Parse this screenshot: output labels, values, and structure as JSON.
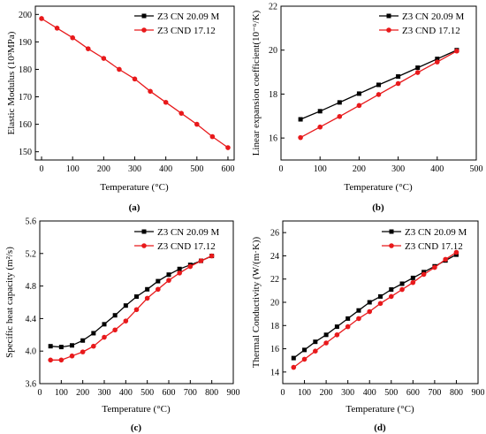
{
  "chart_data": [
    {
      "panel": "(a)",
      "type": "line",
      "xlabel": "Temperature (°C)",
      "ylabel": "Elastic Modulus (10³MPa)",
      "xlim": [
        -20,
        620
      ],
      "ylim": [
        147,
        203
      ],
      "xticks": [
        0,
        100,
        200,
        300,
        400,
        500,
        600
      ],
      "yticks": [
        150,
        160,
        170,
        180,
        190,
        200
      ],
      "legend": "top-right",
      "series": [
        {
          "name": "Z3 CN 20.09 M",
          "color": "#000000",
          "marker": "square",
          "x": [],
          "y": []
        },
        {
          "name": "Z3 CND 17.12",
          "color": "#e8191b",
          "marker": "circle",
          "x": [
            0,
            50,
            100,
            150,
            200,
            250,
            300,
            350,
            400,
            450,
            500,
            550,
            600
          ],
          "y": [
            198.5,
            195.0,
            191.5,
            187.5,
            184.0,
            180.0,
            176.5,
            172.0,
            168.0,
            164.0,
            160.0,
            155.5,
            151.5
          ]
        }
      ]
    },
    {
      "panel": "(b)",
      "type": "line",
      "xlabel": "Temperature (°C)",
      "ylabel": "Linear expansion coefficient(10⁻⁶/K)",
      "xlim": [
        0,
        500
      ],
      "ylim": [
        15,
        22
      ],
      "xticks": [
        0,
        100,
        200,
        300,
        400,
        500
      ],
      "yticks": [
        16,
        18,
        20,
        22
      ],
      "legend": "top-right",
      "series": [
        {
          "name": "Z3 CN 20.09 M",
          "color": "#000000",
          "marker": "square",
          "x": [
            50,
            100,
            150,
            200,
            250,
            300,
            350,
            400,
            450
          ],
          "y": [
            16.85,
            17.22,
            17.62,
            18.02,
            18.42,
            18.8,
            19.2,
            19.6,
            20.0
          ]
        },
        {
          "name": "Z3 CND 17.12",
          "color": "#e8191b",
          "marker": "circle",
          "x": [
            50,
            100,
            150,
            200,
            250,
            300,
            350,
            400,
            450
          ],
          "y": [
            16.02,
            16.5,
            16.98,
            17.48,
            17.98,
            18.48,
            18.98,
            19.46,
            19.96
          ]
        }
      ]
    },
    {
      "panel": "(c)",
      "type": "line",
      "xlabel": "Temperature (°C)",
      "ylabel": "Specific heat capacity (m²/s)",
      "xlim": [
        0,
        900
      ],
      "ylim": [
        3.6,
        5.6
      ],
      "xticks": [
        0,
        100,
        200,
        300,
        400,
        500,
        600,
        700,
        800,
        900
      ],
      "yticks": [
        3.6,
        4.0,
        4.4,
        4.8,
        5.2,
        5.6
      ],
      "ytickfmt": 1,
      "legend": "top-right",
      "series": [
        {
          "name": "Z3 CN 20.09 M",
          "color": "#000000",
          "marker": "square",
          "x": [
            50,
            100,
            150,
            200,
            250,
            300,
            350,
            400,
            450,
            500,
            550,
            600,
            650,
            700,
            750,
            800
          ],
          "y": [
            4.06,
            4.05,
            4.07,
            4.13,
            4.22,
            4.33,
            4.44,
            4.56,
            4.67,
            4.76,
            4.86,
            4.94,
            5.01,
            5.06,
            5.11,
            5.17
          ]
        },
        {
          "name": "Z3 CND 17.12",
          "color": "#e8191b",
          "marker": "circle",
          "x": [
            50,
            100,
            150,
            200,
            250,
            300,
            350,
            400,
            450,
            500,
            550,
            600,
            650,
            700,
            750,
            800
          ],
          "y": [
            3.89,
            3.89,
            3.94,
            3.99,
            4.06,
            4.17,
            4.26,
            4.37,
            4.51,
            4.65,
            4.76,
            4.87,
            4.96,
            5.04,
            5.11,
            5.17
          ]
        }
      ]
    },
    {
      "panel": "(d)",
      "type": "line",
      "xlabel": "Temperature (°C)",
      "ylabel": "Thermal Conductivity (W/(m·K))",
      "xlim": [
        0,
        900
      ],
      "ylim": [
        13,
        27
      ],
      "xticks": [
        0,
        100,
        200,
        300,
        400,
        500,
        600,
        700,
        800,
        900
      ],
      "yticks": [
        14,
        16,
        18,
        20,
        22,
        24,
        26
      ],
      "legend": "top-left",
      "series": [
        {
          "name": "Z3 CN 20.09 M",
          "color": "#000000",
          "marker": "square",
          "x": [
            50,
            100,
            150,
            200,
            250,
            300,
            350,
            400,
            450,
            500,
            550,
            600,
            650,
            700,
            750,
            800
          ],
          "y": [
            15.2,
            15.9,
            16.6,
            17.2,
            17.9,
            18.6,
            19.3,
            20.0,
            20.5,
            21.1,
            21.6,
            22.1,
            22.6,
            23.1,
            23.6,
            24.1
          ]
        },
        {
          "name": "Z3 CND 17.12",
          "color": "#e8191b",
          "marker": "circle",
          "x": [
            50,
            100,
            150,
            200,
            250,
            300,
            350,
            400,
            450,
            500,
            550,
            600,
            650,
            700,
            750,
            800
          ],
          "y": [
            14.4,
            15.1,
            15.8,
            16.5,
            17.2,
            17.9,
            18.6,
            19.2,
            19.9,
            20.5,
            21.1,
            21.7,
            22.4,
            23.0,
            23.7,
            24.3
          ]
        }
      ]
    }
  ]
}
